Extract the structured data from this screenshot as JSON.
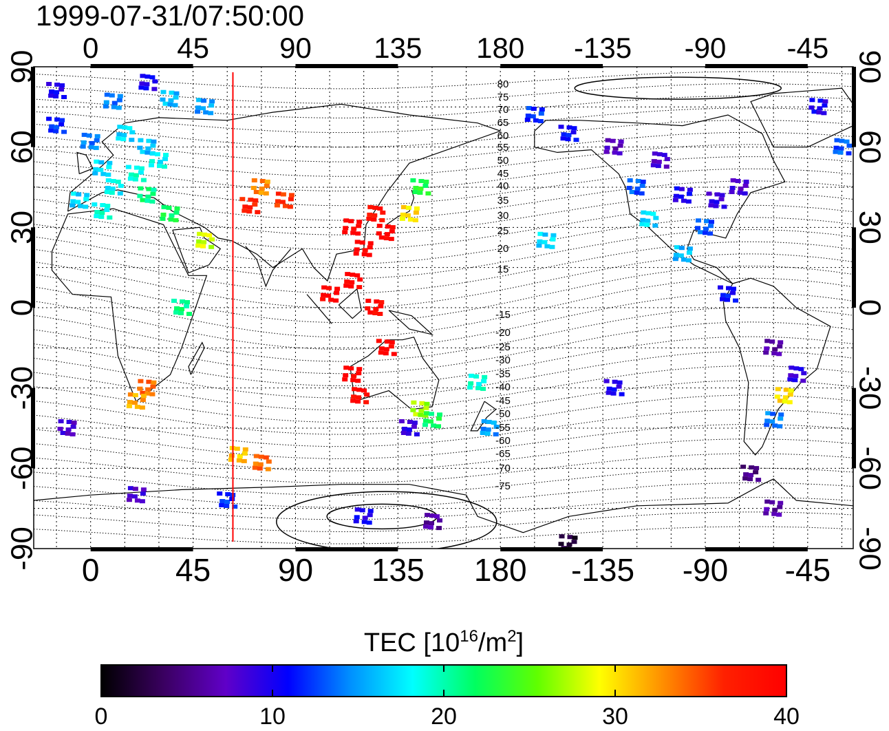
{
  "timestamp": "1999-07-31/07:50:00",
  "top_axis_labels": [
    "0",
    "45",
    "90",
    "135",
    "180",
    "-135",
    "-90",
    "-45"
  ],
  "bottom_axis_labels": [
    "0",
    "45",
    "90",
    "135",
    "180",
    "-135",
    "-90",
    "-45"
  ],
  "left_axis_labels": [
    "90",
    "60",
    "30",
    "0",
    "-30",
    "-60",
    "-90"
  ],
  "right_axis_labels": [
    "90",
    "60",
    "30",
    "0",
    "-30",
    "-60",
    "-90"
  ],
  "contour_labels": [
    "80",
    "75",
    "70",
    "65",
    "60",
    "55",
    "50",
    "45",
    "40",
    "35",
    "30",
    "25",
    "20",
    "15",
    "-15",
    "-20",
    "-25",
    "-30",
    "-35",
    "-40",
    "-45",
    "-50",
    "-55",
    "-60",
    "-65",
    "-70",
    "-75"
  ],
  "colorbar": {
    "title_prefix": "TEC  [10",
    "title_sup1": "16",
    "title_mid": "/m",
    "title_sup2": "2",
    "title_suffix": "]",
    "tick_labels": [
      "0",
      "10",
      "20",
      "30",
      "40"
    ],
    "range": [
      0,
      40
    ],
    "stops": [
      "#000000",
      "#3a0060",
      "#6000c8",
      "#0000ff",
      "#0090ff",
      "#00ffff",
      "#00ff60",
      "#60ff00",
      "#ffff00",
      "#ff9000",
      "#ff2000",
      "#ff0000"
    ]
  },
  "map_data": {
    "projection": "equirectangular, central longitude 105",
    "lon_range": [
      -25,
      335
    ],
    "lat_range": [
      -90,
      90
    ],
    "sun_meridian_lon": 62.5,
    "tec_blocks": [
      {
        "lon": -15,
        "lat": 81,
        "tec": 10
      },
      {
        "lon": 10,
        "lat": 77,
        "tec": 14
      },
      {
        "lon": 25,
        "lat": 84,
        "tec": 10
      },
      {
        "lon": 35,
        "lat": 78,
        "tec": 16
      },
      {
        "lon": 50,
        "lat": 75,
        "tec": 15
      },
      {
        "lon": -15,
        "lat": 68,
        "tec": 12
      },
      {
        "lon": 0,
        "lat": 62,
        "tec": 14
      },
      {
        "lon": 15,
        "lat": 65,
        "tec": 17
      },
      {
        "lon": 25,
        "lat": 60,
        "tec": 16
      },
      {
        "lon": 5,
        "lat": 52,
        "tec": 17
      },
      {
        "lon": 20,
        "lat": 50,
        "tec": 19
      },
      {
        "lon": 30,
        "lat": 55,
        "tec": 18
      },
      {
        "lon": 10,
        "lat": 45,
        "tec": 18
      },
      {
        "lon": 25,
        "lat": 42,
        "tec": 21
      },
      {
        "lon": -5,
        "lat": 40,
        "tec": 17
      },
      {
        "lon": 5,
        "lat": 36,
        "tec": 19
      },
      {
        "lon": 35,
        "lat": 35,
        "tec": 22
      },
      {
        "lon": 50,
        "lat": 25,
        "tec": 28
      },
      {
        "lon": 75,
        "lat": 45,
        "tec": 33
      },
      {
        "lon": 85,
        "lat": 40,
        "tec": 36
      },
      {
        "lon": 70,
        "lat": 38,
        "tec": 37
      },
      {
        "lon": 115,
        "lat": 30,
        "tec": 40
      },
      {
        "lon": 125,
        "lat": 35,
        "tec": 38
      },
      {
        "lon": 130,
        "lat": 28,
        "tec": 40
      },
      {
        "lon": 140,
        "lat": 35,
        "tec": 30
      },
      {
        "lon": 145,
        "lat": 45,
        "tec": 23
      },
      {
        "lon": 120,
        "lat": 22,
        "tec": 40
      },
      {
        "lon": 115,
        "lat": 10,
        "tec": 40
      },
      {
        "lon": 125,
        "lat": 0,
        "tec": 39
      },
      {
        "lon": 105,
        "lat": 5,
        "tec": 40
      },
      {
        "lon": 130,
        "lat": -15,
        "tec": 40
      },
      {
        "lon": 115,
        "lat": -25,
        "tec": 40
      },
      {
        "lon": 118,
        "lat": -33,
        "tec": 39
      },
      {
        "lon": 145,
        "lat": -38,
        "tec": 27
      },
      {
        "lon": 150,
        "lat": -42,
        "tec": 22
      },
      {
        "lon": 140,
        "lat": -45,
        "tec": 9
      },
      {
        "lon": 170,
        "lat": -28,
        "tec": 19
      },
      {
        "lon": 175,
        "lat": -45,
        "tec": 15
      },
      {
        "lon": 25,
        "lat": -30,
        "tec": 34
      },
      {
        "lon": 20,
        "lat": -35,
        "tec": 32
      },
      {
        "lon": 40,
        "lat": 0,
        "tec": 21
      },
      {
        "lon": 65,
        "lat": -55,
        "tec": 31
      },
      {
        "lon": 75,
        "lat": -58,
        "tec": 34
      },
      {
        "lon": -10,
        "lat": -45,
        "tec": 8
      },
      {
        "lon": 20,
        "lat": -70,
        "tec": 8
      },
      {
        "lon": 60,
        "lat": -72,
        "tec": 12
      },
      {
        "lon": 120,
        "lat": -78,
        "tec": 10
      },
      {
        "lon": 150,
        "lat": -80,
        "tec": 6
      },
      {
        "lon": 210,
        "lat": -88,
        "tec": 2
      },
      {
        "lon": 195,
        "lat": 72,
        "tec": 12
      },
      {
        "lon": 210,
        "lat": 65,
        "tec": 11
      },
      {
        "lon": 230,
        "lat": 60,
        "tec": 7
      },
      {
        "lon": 250,
        "lat": 55,
        "tec": 8
      },
      {
        "lon": 240,
        "lat": 45,
        "tec": 13
      },
      {
        "lon": 260,
        "lat": 42,
        "tec": 10
      },
      {
        "lon": 275,
        "lat": 40,
        "tec": 9
      },
      {
        "lon": 285,
        "lat": 45,
        "tec": 8
      },
      {
        "lon": 245,
        "lat": 33,
        "tec": 17
      },
      {
        "lon": 270,
        "lat": 30,
        "tec": 13
      },
      {
        "lon": 260,
        "lat": 20,
        "tec": 16
      },
      {
        "lon": 280,
        "lat": 5,
        "tec": 11
      },
      {
        "lon": 300,
        "lat": -15,
        "tec": 6
      },
      {
        "lon": 310,
        "lat": -25,
        "tec": 9
      },
      {
        "lon": 305,
        "lat": -33,
        "tec": 30
      },
      {
        "lon": 300,
        "lat": -42,
        "tec": 14
      },
      {
        "lon": 290,
        "lat": -62,
        "tec": 5
      },
      {
        "lon": 300,
        "lat": -75,
        "tec": 6
      },
      {
        "lon": 330,
        "lat": 60,
        "tec": 13
      },
      {
        "lon": 320,
        "lat": 75,
        "tec": 10
      },
      {
        "lon": 200,
        "lat": 25,
        "tec": 17
      },
      {
        "lon": 230,
        "lat": -30,
        "tec": 10
      }
    ]
  }
}
